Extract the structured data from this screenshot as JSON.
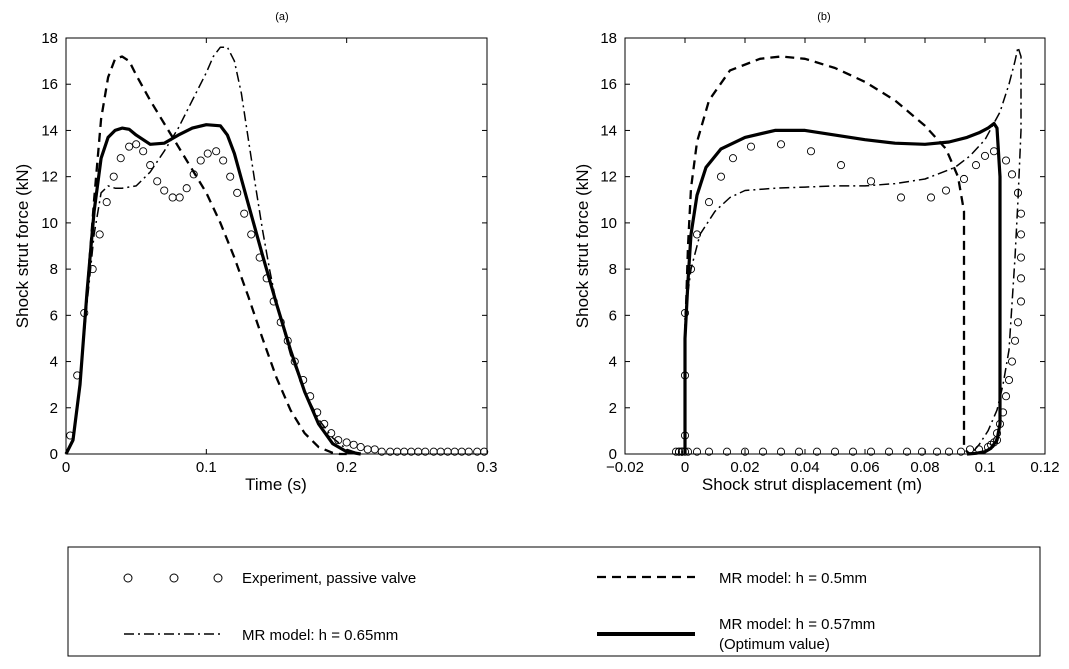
{
  "chart_data": [
    {
      "type": "line",
      "title": "(a)",
      "xlabel": "Time (s)",
      "ylabel": "Shock strut force (kN)",
      "xlim": [
        0,
        0.3
      ],
      "ylim": [
        0,
        18
      ],
      "xticks": [
        0,
        0.1,
        0.2,
        0.3
      ],
      "xtick_labels": [
        "0",
        "0.1",
        "0.2",
        "0.3"
      ],
      "yticks": [
        0,
        2,
        4,
        6,
        8,
        10,
        12,
        14,
        16,
        18
      ],
      "ytick_labels": [
        "0",
        "2",
        "4",
        "6",
        "8",
        "10",
        "12",
        "14",
        "16",
        "18"
      ],
      "grid": false,
      "series": [
        {
          "key": "exp",
          "x": [
            0.003,
            0.008,
            0.013,
            0.019,
            0.024,
            0.029,
            0.034,
            0.039,
            0.045,
            0.05,
            0.055,
            0.06,
            0.065,
            0.07,
            0.076,
            0.081,
            0.086,
            0.091,
            0.096,
            0.101,
            0.107,
            0.112,
            0.117,
            0.122,
            0.127,
            0.132,
            0.138,
            0.143,
            0.148,
            0.153,
            0.158,
            0.163,
            0.169,
            0.174,
            0.179,
            0.184,
            0.189,
            0.194,
            0.2,
            0.205,
            0.21,
            0.215,
            0.22,
            0.225,
            0.231,
            0.236,
            0.241,
            0.246,
            0.251,
            0.256,
            0.262,
            0.267,
            0.272,
            0.277,
            0.282,
            0.287,
            0.293,
            0.298
          ],
          "y": [
            0.8,
            3.4,
            6.1,
            8.0,
            9.5,
            10.9,
            12.0,
            12.8,
            13.3,
            13.4,
            13.1,
            12.5,
            11.8,
            11.4,
            11.1,
            11.1,
            11.5,
            12.1,
            12.7,
            13.0,
            13.1,
            12.7,
            12.0,
            11.3,
            10.4,
            9.5,
            8.5,
            7.6,
            6.6,
            5.7,
            4.9,
            4.0,
            3.2,
            2.5,
            1.8,
            1.3,
            0.9,
            0.6,
            0.5,
            0.4,
            0.3,
            0.2,
            0.2,
            0.1,
            0.1,
            0.1,
            0.1,
            0.1,
            0.1,
            0.1,
            0.1,
            0.1,
            0.1,
            0.1,
            0.1,
            0.1,
            0.1,
            0.1
          ]
        },
        {
          "key": "h05",
          "x": [
            0,
            0.005,
            0.01,
            0.015,
            0.02,
            0.025,
            0.03,
            0.035,
            0.04,
            0.045,
            0.05,
            0.06,
            0.07,
            0.08,
            0.09,
            0.1,
            0.11,
            0.12,
            0.13,
            0.14,
            0.15,
            0.16,
            0.17,
            0.18,
            0.19,
            0.195,
            0.2
          ],
          "y": [
            0,
            0.6,
            3,
            7,
            11,
            14.5,
            16.3,
            17.1,
            17.2,
            17,
            16.4,
            15.3,
            14.3,
            13.3,
            12.3,
            11.3,
            10,
            8.5,
            6.8,
            5,
            3.3,
            1.9,
            0.9,
            0.3,
            0.05,
            0,
            0
          ]
        },
        {
          "key": "h065",
          "x": [
            0,
            0.005,
            0.01,
            0.015,
            0.02,
            0.025,
            0.03,
            0.035,
            0.04,
            0.05,
            0.06,
            0.07,
            0.08,
            0.09,
            0.1,
            0.105,
            0.11,
            0.115,
            0.12,
            0.125,
            0.13,
            0.135,
            0.14,
            0.145,
            0.15,
            0.16,
            0.17,
            0.18,
            0.19,
            0.2,
            0.21
          ],
          "y": [
            0,
            0.6,
            3,
            6.5,
            9.5,
            11.3,
            11.6,
            11.5,
            11.5,
            11.6,
            12.2,
            13.1,
            14.1,
            15.3,
            16.5,
            17.2,
            17.6,
            17.6,
            17,
            15.6,
            13.6,
            11.6,
            9.7,
            8,
            6.5,
            4.3,
            2.7,
            1.5,
            0.7,
            0.2,
            0
          ]
        },
        {
          "key": "h057",
          "x": [
            0,
            0.005,
            0.01,
            0.015,
            0.02,
            0.025,
            0.03,
            0.035,
            0.04,
            0.045,
            0.05,
            0.06,
            0.07,
            0.08,
            0.09,
            0.1,
            0.11,
            0.115,
            0.12,
            0.125,
            0.13,
            0.14,
            0.15,
            0.16,
            0.17,
            0.18,
            0.19,
            0.2,
            0.21
          ],
          "y": [
            0,
            0.6,
            3,
            7,
            10.5,
            12.8,
            13.7,
            14,
            14.1,
            14.05,
            13.8,
            13.4,
            13.45,
            13.8,
            14.1,
            14.25,
            14.2,
            13.8,
            13,
            11.9,
            10.8,
            8.6,
            6.5,
            4.5,
            2.7,
            1.3,
            0.45,
            0.1,
            0
          ]
        }
      ]
    },
    {
      "type": "line",
      "title": "(b)",
      "xlabel": "Shock strut displacement (m)",
      "ylabel": "Shock strut force (kN)",
      "xlim": [
        -0.02,
        0.12
      ],
      "ylim": [
        0,
        18
      ],
      "xticks": [
        -0.02,
        0,
        0.02,
        0.04,
        0.06,
        0.08,
        0.1,
        0.12
      ],
      "xtick_labels": [
        "−0.02",
        "0",
        "0.02",
        "0.04",
        "0.06",
        "0.08",
        "0.1",
        "0.12"
      ],
      "yticks": [
        0,
        2,
        4,
        6,
        8,
        10,
        12,
        14,
        16,
        18
      ],
      "ytick_labels": [
        "0",
        "2",
        "4",
        "6",
        "8",
        "10",
        "12",
        "14",
        "16",
        "18"
      ],
      "grid": false,
      "series": [
        {
          "key": "exp",
          "x": [
            -0.001,
            -0.002,
            -0.003,
            -0.002,
            -0.001,
            0,
            0,
            0,
            0.002,
            0.004,
            0.008,
            0.012,
            0.016,
            0.022,
            0.032,
            0.042,
            0.052,
            0.062,
            0.072,
            0.082,
            0.087,
            0.093,
            0.097,
            0.1,
            0.103,
            0.107,
            0.109,
            0.111,
            0.112,
            0.112,
            0.112,
            0.112,
            0.112,
            0.111,
            0.11,
            0.109,
            0.108,
            0.107,
            0.106,
            0.105,
            0.104,
            0.104,
            0.103,
            0.102,
            0.101,
            0.098,
            0.095,
            0.092,
            0.088,
            0.084,
            0.079,
            0.074,
            0.068,
            0.062,
            0.056,
            0.05,
            0.044,
            0.038,
            0.032,
            0.026,
            0.02,
            0.014,
            0.008,
            0.004,
            0.001,
            0,
            -0.001,
            -0.001
          ],
          "y": [
            0.1,
            0.1,
            0.1,
            0.1,
            0.1,
            0.8,
            3.4,
            6.1,
            8.0,
            9.5,
            10.9,
            12.0,
            12.8,
            13.3,
            13.4,
            13.1,
            12.5,
            11.8,
            11.1,
            11.1,
            11.4,
            11.9,
            12.5,
            12.9,
            13.1,
            12.7,
            12.1,
            11.3,
            10.4,
            9.5,
            8.5,
            7.6,
            6.6,
            5.7,
            4.9,
            4.0,
            3.2,
            2.5,
            1.8,
            1.3,
            0.9,
            0.6,
            0.5,
            0.4,
            0.3,
            0.2,
            0.2,
            0.1,
            0.1,
            0.1,
            0.1,
            0.1,
            0.1,
            0.1,
            0.1,
            0.1,
            0.1,
            0.1,
            0.1,
            0.1,
            0.1,
            0.1,
            0.1,
            0.1,
            0.1,
            0.1,
            0.1,
            0.1
          ]
        },
        {
          "key": "h05",
          "x": [
            0,
            0,
            0.001,
            0.002,
            0.004,
            0.008,
            0.015,
            0.025,
            0.032,
            0.04,
            0.05,
            0.06,
            0.07,
            0.08,
            0.087,
            0.091,
            0.093,
            0.093,
            0.093,
            0.093,
            0.093,
            0.094,
            0.095
          ],
          "y": [
            0,
            5,
            9,
            11.5,
            13.5,
            15.3,
            16.6,
            17.1,
            17.2,
            17.1,
            16.7,
            16.1,
            15.3,
            14.2,
            13.2,
            12,
            10.5,
            7,
            3,
            1,
            0.3,
            0.1,
            0
          ]
        },
        {
          "key": "h065",
          "x": [
            0,
            0,
            0.002,
            0.005,
            0.01,
            0.015,
            0.02,
            0.03,
            0.04,
            0.05,
            0.06,
            0.07,
            0.08,
            0.09,
            0.095,
            0.1,
            0.105,
            0.108,
            0.11,
            0.111,
            0.112,
            0.112,
            0.111,
            0.11,
            0.109,
            0.108,
            0.106,
            0.104,
            0.101,
            0.098,
            0.096,
            0.095
          ],
          "y": [
            0,
            6,
            8,
            9.5,
            10.5,
            11.1,
            11.4,
            11.5,
            11.55,
            11.6,
            11.6,
            11.7,
            11.9,
            12.4,
            12.9,
            13.6,
            14.8,
            16,
            17,
            17.6,
            17.2,
            14,
            11,
            8.5,
            6.5,
            4.5,
            3,
            1.9,
            1,
            0.4,
            0.1,
            0
          ]
        },
        {
          "key": "h057",
          "x": [
            0,
            0,
            0.001,
            0.002,
            0.004,
            0.007,
            0.012,
            0.02,
            0.03,
            0.04,
            0.05,
            0.06,
            0.07,
            0.08,
            0.088,
            0.094,
            0.098,
            0.101,
            0.103,
            0.104,
            0.105,
            0.105,
            0.105,
            0.105,
            0.105,
            0.104,
            0.102,
            0.1,
            0.097,
            0.094
          ],
          "y": [
            0,
            5,
            7.5,
            9.5,
            11.2,
            12.4,
            13.2,
            13.7,
            14.0,
            14.0,
            13.8,
            13.6,
            13.45,
            13.4,
            13.5,
            13.7,
            13.9,
            14.1,
            14.3,
            14.1,
            12,
            9,
            6,
            3,
            1.3,
            0.6,
            0.25,
            0.1,
            0.03,
            0
          ]
        }
      ]
    }
  ],
  "legend": {
    "items": [
      {
        "key": "exp",
        "label": "Experiment, passive valve"
      },
      {
        "key": "h05",
        "label": "MR model: h = 0.5mm"
      },
      {
        "key": "h065",
        "label": "MR model: h = 0.65mm"
      },
      {
        "key": "h057",
        "label": "MR model: h = 0.57mm",
        "label2": "(Optimum value)"
      }
    ]
  }
}
